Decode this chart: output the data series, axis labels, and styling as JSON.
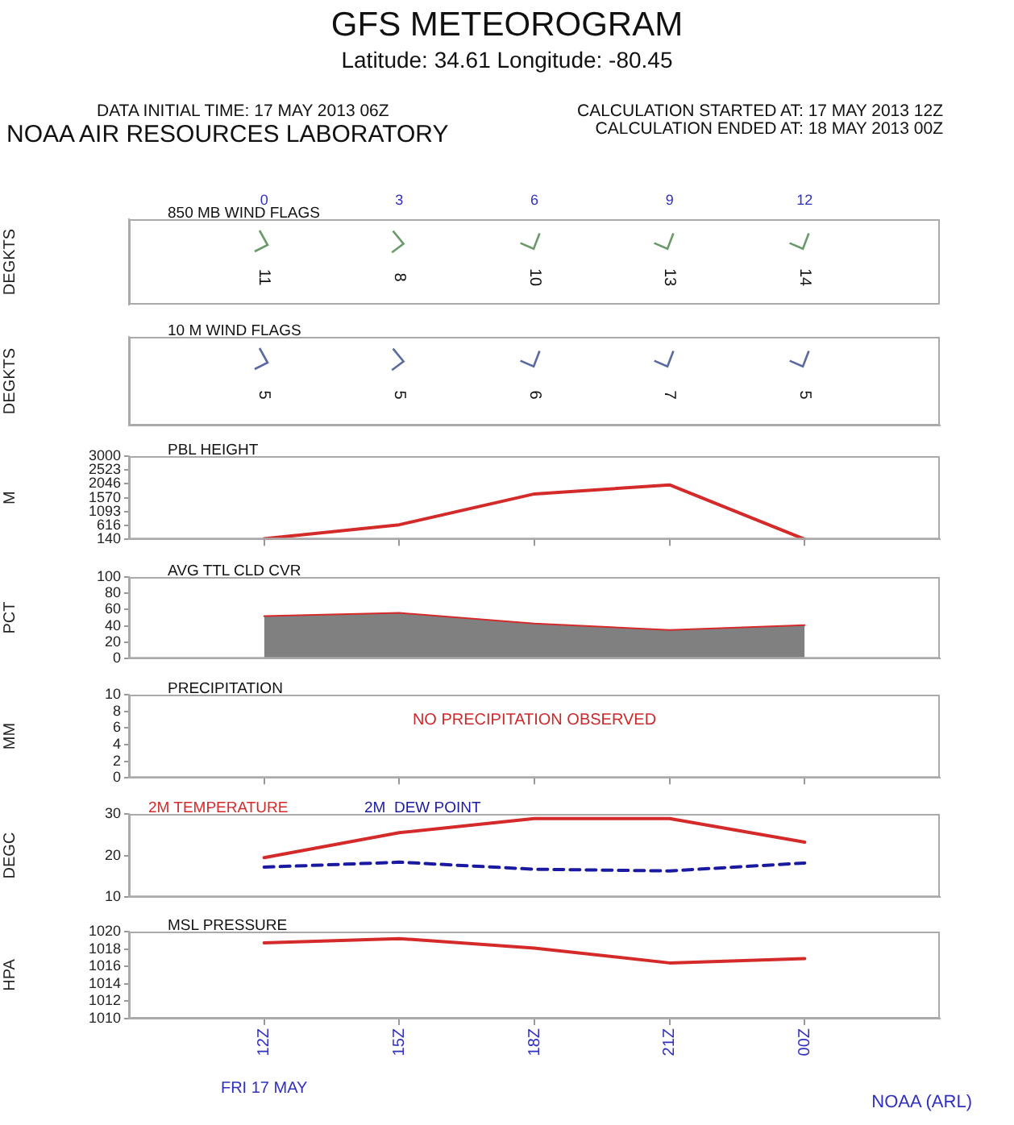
{
  "chart_data": [
    {
      "type": "heatmap",
      "title": "GFS METEOROGRAM",
      "subtitle": "Latitude: 34.61 Longitude: -80.45",
      "ylabel": "DEGKTS",
      "annotations": [
        "DATA INITIAL TIME: 17 MAY 2013 06Z",
        "CALCULATION STARTED AT: 17 MAY 2013 12Z",
        "CALCULATION ENDED AT: 18 MAY 2013 00Z",
        "NOAA AIR RESOURCES LABORATORY",
        "850 MB WIND FLAGS"
      ],
      "categories": [
        "0",
        "3",
        "6",
        "9",
        "12"
      ],
      "y_categories": [
        null
      ],
      "cells": [
        [
          11,
          8,
          10,
          13,
          14
        ]
      ],
      "data_labels": true
    },
    {
      "type": "other",
      "title": "10 M WIND FLAGS",
      "ylabel": "DEGKTS",
      "categories": [
        null,
        null,
        null,
        null,
        null
      ],
      "values": [
        5,
        5,
        6,
        7,
        5
      ],
      "data_labels": true
    },
    {
      "type": "line",
      "title": "PBL HEIGHT",
      "ylabel": "M",
      "categories": [
        null,
        null,
        null,
        null,
        null
      ],
      "values": [
        160,
        640,
        1700,
        2010,
        140
      ],
      "color": "#d42a2a",
      "ylim": [
        140,
        3000
      ],
      "yticks": [
        140,
        616,
        1093,
        1570,
        2046,
        2523,
        3000
      ]
    },
    {
      "type": "area",
      "title": "AVG TTL CLD CVR",
      "ylabel": "PCT",
      "categories": [
        null,
        null,
        null,
        null,
        null
      ],
      "values": [
        52,
        56,
        43,
        35,
        41
      ],
      "color": "#808080",
      "ylim": [
        0,
        100
      ],
      "yticks": [
        0,
        20,
        40,
        60,
        80,
        100
      ]
    },
    {
      "type": "bar",
      "title": "PRECIPITATION",
      "ylabel": "MM",
      "annotations": [
        "NO PRECIPITATION OBSERVED"
      ],
      "categories": [
        null,
        null,
        null,
        null,
        null
      ],
      "values": [
        null,
        null,
        null,
        null,
        null
      ],
      "color": "#2a8a2a",
      "ylim": [
        0,
        10
      ],
      "yticks": [
        0,
        2,
        4,
        6,
        8,
        10
      ]
    },
    {
      "type": "line",
      "ylabel": "DEGC",
      "categories": [
        null,
        null,
        null,
        null,
        null
      ],
      "legend": "top left",
      "ylim": [
        10,
        30
      ],
      "yticks": [
        10,
        20,
        30
      ],
      "series": [
        {
          "name": "2M TEMPERATURE",
          "color": "#d42a2a",
          "values": [
            19.5,
            25.5,
            28.9,
            28.9,
            23.2
          ]
        },
        {
          "name": "2M  DEW POINT",
          "color": "#1a1aa0",
          "line_style": "dashed",
          "values": [
            17.2,
            18.4,
            16.7,
            16.3,
            18.2
          ]
        }
      ]
    },
    {
      "type": "line",
      "title": "MSL PRESSURE",
      "ylabel": "HPA",
      "categories": [
        "12Z",
        "15Z",
        "18Z",
        "21Z",
        "00Z"
      ],
      "values": [
        1018.7,
        1019.2,
        1018.1,
        1016.4,
        1016.9
      ],
      "color": "#d42a2a",
      "ylim": [
        1010,
        1020
      ],
      "yticks": [
        1010,
        1012,
        1014,
        1016,
        1018,
        1020
      ],
      "annotations": [
        "FRI 17 MAY",
        "NOAA (ARL)"
      ]
    }
  ]
}
